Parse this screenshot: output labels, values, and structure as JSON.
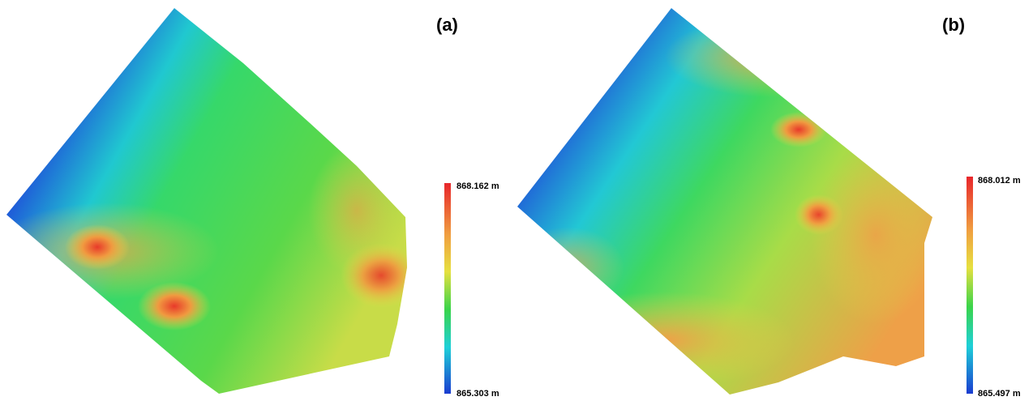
{
  "panels": [
    {
      "label": "(a)",
      "colorbar": {
        "max": "868.162 m",
        "min": "865.303 m"
      }
    },
    {
      "label": "(b)",
      "colorbar": {
        "max": "868.012 m",
        "min": "865.497 m"
      }
    }
  ]
}
